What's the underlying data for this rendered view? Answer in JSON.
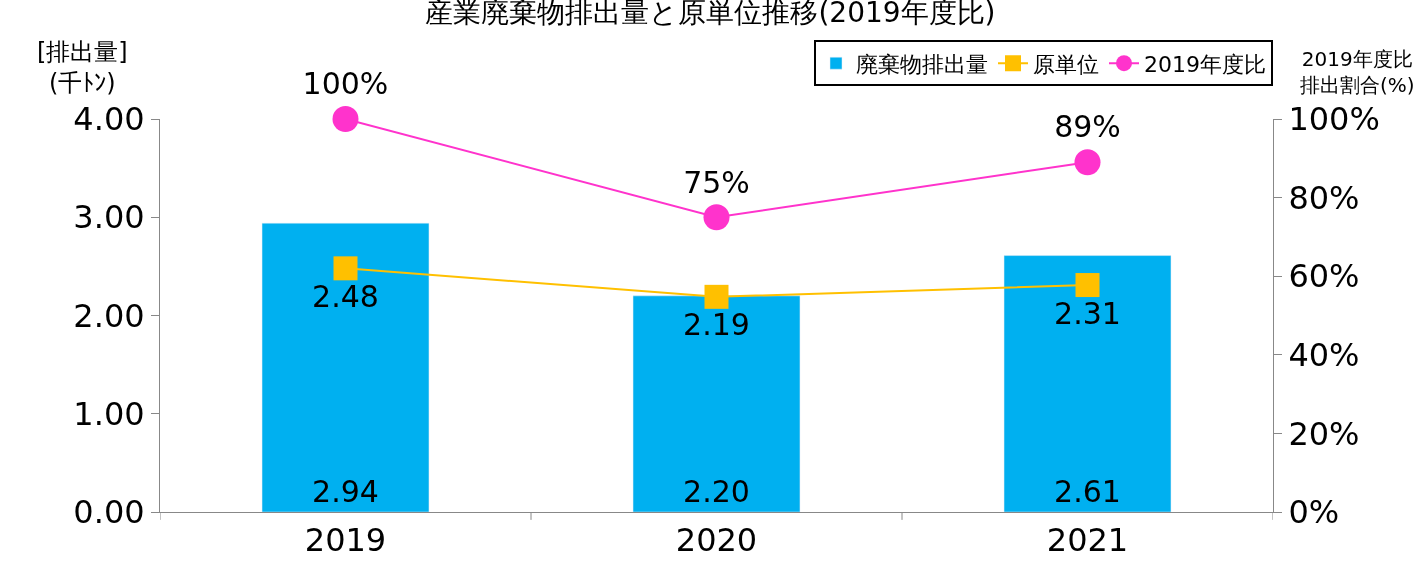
{
  "chart_data": {
    "type": "bar",
    "title": "産業廃棄物排出量と原単位推移(2019年度比)",
    "ylabel": "[排出量]\n(千ﾄﾝ)",
    "y2label": "2019年度比排出割合(%)",
    "categories": [
      "2019",
      "2020",
      "2021"
    ],
    "series": [
      {
        "name": "廃棄物排出量",
        "color": "#00b0f0",
        "values": [
          2.94,
          2.2,
          2.61
        ],
        "value_labels": [
          "2.94",
          "2.20",
          "2.61"
        ]
      },
      {
        "name": "原単位",
        "type": "line",
        "color": "#ffc000",
        "marker": "square",
        "values": [
          2.48,
          2.19,
          2.31
        ],
        "value_labels": [
          "2.48",
          "2.19",
          "2.31"
        ]
      },
      {
        "name": "2019年度比",
        "type": "line",
        "color": "#ff33cc",
        "marker": "circle",
        "axis": "y2",
        "values": [
          100,
          75,
          89
        ],
        "value_labels": [
          "100%",
          "75%",
          "89%"
        ]
      }
    ],
    "ylim": [
      0,
      4
    ],
    "yticks": [
      {
        "value": 0,
        "label": "0.00"
      },
      {
        "value": 1,
        "label": "1.00"
      },
      {
        "value": 2,
        "label": "2.00"
      },
      {
        "value": 3,
        "label": "3.00"
      },
      {
        "value": 4,
        "label": "4.00"
      }
    ],
    "y2lim": [
      0,
      100
    ],
    "y2ticks": [
      {
        "value": 0,
        "label": "0%"
      },
      {
        "value": 20,
        "label": "20%"
      },
      {
        "value": 40,
        "label": "40%"
      },
      {
        "value": 60,
        "label": "60%"
      },
      {
        "value": 80,
        "label": "80%"
      },
      {
        "value": 100,
        "label": "100%"
      }
    ],
    "legend": "top right"
  }
}
